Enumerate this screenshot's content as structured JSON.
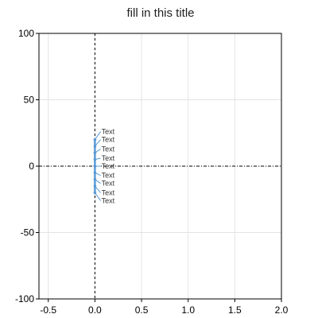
{
  "chart_data": {
    "type": "line",
    "title": "fill in this title",
    "xlabel": "",
    "ylabel": "",
    "xlim": [
      -0.6,
      2.0
    ],
    "ylim": [
      -100,
      100
    ],
    "x_ticks": [
      -0.5,
      0.0,
      0.5,
      1.0,
      1.5,
      2.0
    ],
    "x_tick_labels": [
      "-0.5",
      "0.0",
      "0.5",
      "1.0",
      "1.5",
      "2.0"
    ],
    "y_ticks": [
      -100,
      -50,
      0,
      50,
      100
    ],
    "y_tick_labels": [
      "-100",
      "-50",
      "0",
      "50",
      "100"
    ],
    "grid": true,
    "reference_lines": {
      "x": 0,
      "y": 0,
      "style": "dashed"
    },
    "series": [
      {
        "color": "#5b9bd5",
        "points": [
          {
            "x": 0.0,
            "y": -20
          },
          {
            "x": 0.0,
            "y": -15
          },
          {
            "x": 0.0,
            "y": -10
          },
          {
            "x": 0.0,
            "y": -5
          },
          {
            "x": 0.0,
            "y": 0
          },
          {
            "x": 0.0,
            "y": 5
          },
          {
            "x": 0.0,
            "y": 10
          },
          {
            "x": 0.0,
            "y": 15
          },
          {
            "x": 0.0,
            "y": 20
          }
        ]
      }
    ],
    "annotations": [
      {
        "text": "Text",
        "x": 0.07,
        "y": 26
      },
      {
        "text": "Text",
        "x": 0.07,
        "y": 20
      },
      {
        "text": "Text",
        "x": 0.07,
        "y": 13
      },
      {
        "text": "Text",
        "x": 0.07,
        "y": 6
      },
      {
        "text": "Text",
        "x": 0.07,
        "y": 0
      },
      {
        "text": "Text",
        "x": 0.07,
        "y": -7
      },
      {
        "text": "Text",
        "x": 0.07,
        "y": -13
      },
      {
        "text": "Text",
        "x": 0.07,
        "y": -20
      },
      {
        "text": "Text",
        "x": 0.07,
        "y": -26
      }
    ]
  }
}
